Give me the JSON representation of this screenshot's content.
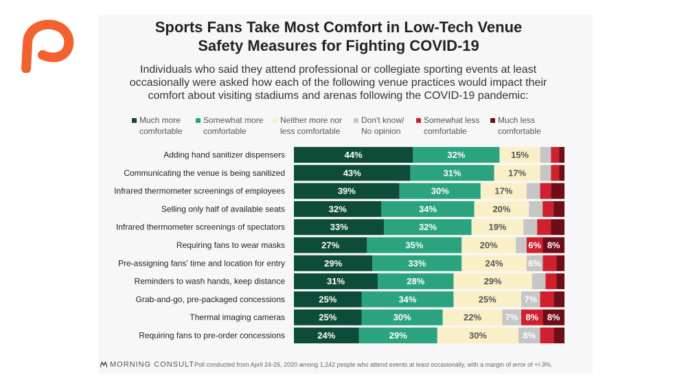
{
  "title_lines": [
    "Sports Fans Take Most Comfort in Low-Tech Venue",
    "Safety Measures for Fighting COVID-19"
  ],
  "subtitle_lines": [
    "Individuals who said they attend professional or collegiate sporting events at least",
    "occasionally were asked how each of the following venue practices would impact their",
    "comfort about visiting stadiums and arenas following the COVID-19 pandemic:"
  ],
  "legend": [
    {
      "line1": "Much more",
      "line2": "comfortable"
    },
    {
      "line1": "Somewhat more",
      "line2": "comfortable"
    },
    {
      "line1": "Neither more nor",
      "line2": "less comfortable"
    },
    {
      "line1": "Don't know/",
      "line2": "No opinion"
    },
    {
      "line1": "Somewhat less",
      "line2": "comfortable"
    },
    {
      "line1": "Much less",
      "line2": "comfortable"
    }
  ],
  "colors": [
    "#0e4c3a",
    "#2aa37e",
    "#faf0c8",
    "#c6c6c6",
    "#d0202e",
    "#6e0d18"
  ],
  "chart_data": {
    "type": "bar",
    "orientation": "horizontal",
    "stacked": true,
    "normalized": true,
    "categories": [
      "Adding hand sanitizer dispensers",
      "Communicating the venue is being sanitized",
      "Infrared thermometer screenings of employees",
      "Selling only half of available seats",
      "Infrared thermometer screenings of spectators",
      "Requiring fans to wear masks",
      "Pre-assigning fans’ time and location for entry",
      "Reminders to wash hands, keep distance",
      "Grab-and-go, pre-packaged concessions",
      "Thermal imaging cameras",
      "Requiring fans to pre-order concessions"
    ],
    "series": [
      {
        "name": "Much more comfortable",
        "values": [
          44,
          43,
          39,
          32,
          33,
          27,
          29,
          31,
          25,
          25,
          24
        ]
      },
      {
        "name": "Somewhat more comfortable",
        "values": [
          32,
          31,
          30,
          34,
          32,
          35,
          33,
          28,
          34,
          30,
          29
        ]
      },
      {
        "name": "Neither more nor less comfortable",
        "values": [
          15,
          17,
          17,
          20,
          19,
          20,
          24,
          29,
          25,
          22,
          30
        ]
      },
      {
        "name": "Don't know/No opinion",
        "values": [
          4,
          4,
          5,
          5,
          5,
          4,
          6,
          5,
          7,
          7,
          8
        ]
      },
      {
        "name": "Somewhat less comfortable",
        "values": [
          3,
          3,
          4,
          4,
          5,
          6,
          5,
          4,
          5,
          8,
          5
        ]
      },
      {
        "name": "Much less comfortable",
        "values": [
          2,
          2,
          5,
          4,
          5,
          8,
          3,
          3,
          4,
          8,
          4
        ]
      }
    ],
    "data_labels": [
      [
        "44%",
        "32%",
        "15%",
        "",
        "",
        ""
      ],
      [
        "43%",
        "31%",
        "17%",
        "",
        "",
        ""
      ],
      [
        "39%",
        "30%",
        "17%",
        "",
        "",
        ""
      ],
      [
        "32%",
        "34%",
        "20%",
        "",
        "",
        ""
      ],
      [
        "33%",
        "32%",
        "19%",
        "",
        "",
        ""
      ],
      [
        "27%",
        "35%",
        "20%",
        "",
        "6%",
        "8%"
      ],
      [
        "29%",
        "33%",
        "24%",
        "6%",
        "",
        ""
      ],
      [
        "31%",
        "28%",
        "29%",
        "",
        "",
        ""
      ],
      [
        "25%",
        "34%",
        "25%",
        "7%",
        "",
        ""
      ],
      [
        "25%",
        "30%",
        "22%",
        "7%",
        "8%",
        "8%"
      ],
      [
        "24%",
        "29%",
        "30%",
        "8%",
        "",
        ""
      ]
    ],
    "legend_position": "top",
    "grid": false
  },
  "footer": {
    "brand": "MORNING CONSULT",
    "note": "Poll conducted from April 24-26, 2020 among 1,242 people who attend events at least occasionally, with a margin of error of +/-3%."
  }
}
